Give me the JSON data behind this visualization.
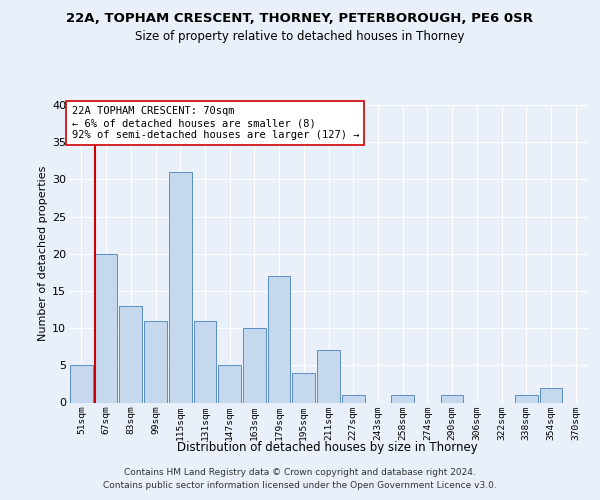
{
  "title1": "22A, TOPHAM CRESCENT, THORNEY, PETERBOROUGH, PE6 0SR",
  "title2": "Size of property relative to detached houses in Thorney",
  "xlabel": "Distribution of detached houses by size in Thorney",
  "ylabel": "Number of detached properties",
  "categories": [
    "51sqm",
    "67sqm",
    "83sqm",
    "99sqm",
    "115sqm",
    "131sqm",
    "147sqm",
    "163sqm",
    "179sqm",
    "195sqm",
    "211sqm",
    "227sqm",
    "243sqm",
    "258sqm",
    "274sqm",
    "290sqm",
    "306sqm",
    "322sqm",
    "338sqm",
    "354sqm",
    "370sqm"
  ],
  "values": [
    5,
    20,
    13,
    11,
    31,
    11,
    5,
    10,
    17,
    4,
    7,
    1,
    0,
    1,
    0,
    1,
    0,
    0,
    1,
    2,
    0
  ],
  "bar_color": "#c5d8ed",
  "bar_edge_color": "#5a8fc2",
  "subject_line_color": "#cc0000",
  "annotation_text": "22A TOPHAM CRESCENT: 70sqm\n← 6% of detached houses are smaller (8)\n92% of semi-detached houses are larger (127) →",
  "annotation_box_color": "#ffffff",
  "annotation_box_edge_color": "#cc0000",
  "ylim": [
    0,
    40
  ],
  "yticks": [
    0,
    5,
    10,
    15,
    20,
    25,
    30,
    35,
    40
  ],
  "footer1": "Contains HM Land Registry data © Crown copyright and database right 2024.",
  "footer2": "Contains public sector information licensed under the Open Government Licence v3.0.",
  "bg_color": "#eaf0f9",
  "plot_bg_color": "#eaf0f9",
  "grid_color": "#ffffff",
  "title1_fontsize": 9.5,
  "title2_fontsize": 8.5
}
